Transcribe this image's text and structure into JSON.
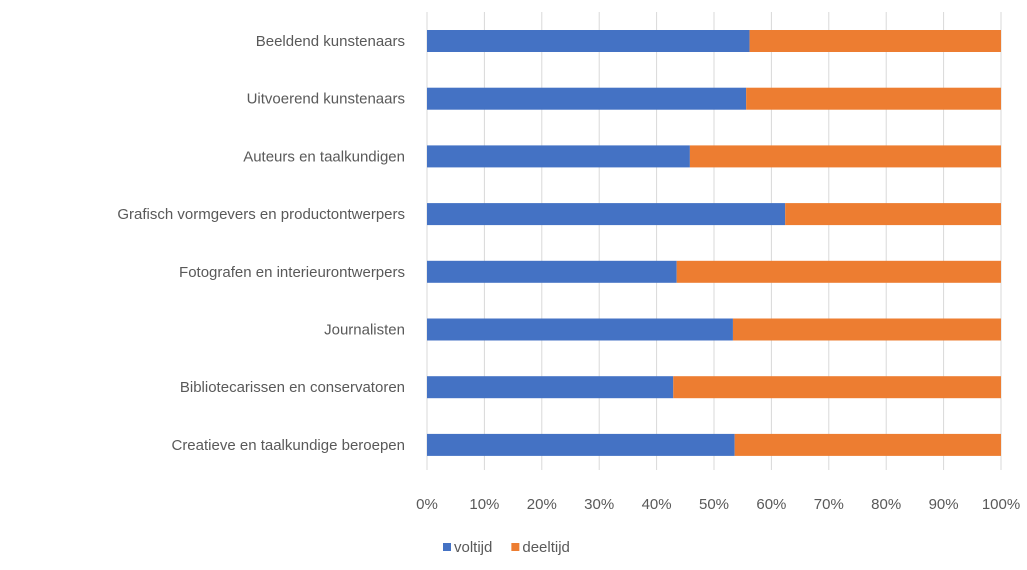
{
  "chart_data": {
    "type": "bar",
    "orientation": "horizontal",
    "stacked": "percent",
    "categories": [
      "Beeldend kunstenaars",
      "Uitvoerend kunstenaars",
      "Auteurs en taalkundigen",
      "Grafisch vormgevers en productontwerpers",
      "Fotografen en interieurontwerpers",
      "Journalisten",
      "Bibliotecarissen en conservatoren",
      "Creatieve en taalkundige beroepen"
    ],
    "series": [
      {
        "name": "voltijd",
        "color": "#4472C4",
        "values": [
          56.2,
          55.6,
          45.8,
          62.4,
          43.5,
          53.3,
          42.9,
          53.6
        ]
      },
      {
        "name": "deeltijd",
        "color": "#ED7D31",
        "values": [
          43.8,
          44.4,
          54.2,
          37.6,
          56.5,
          46.7,
          57.1,
          46.4
        ]
      }
    ],
    "xlim": [
      0,
      100
    ],
    "xticks": [
      "0%",
      "10%",
      "20%",
      "30%",
      "40%",
      "50%",
      "60%",
      "70%",
      "80%",
      "90%",
      "100%"
    ],
    "grid": true,
    "gridline_color": "#D9D9D9",
    "legend_position": "bottom"
  }
}
